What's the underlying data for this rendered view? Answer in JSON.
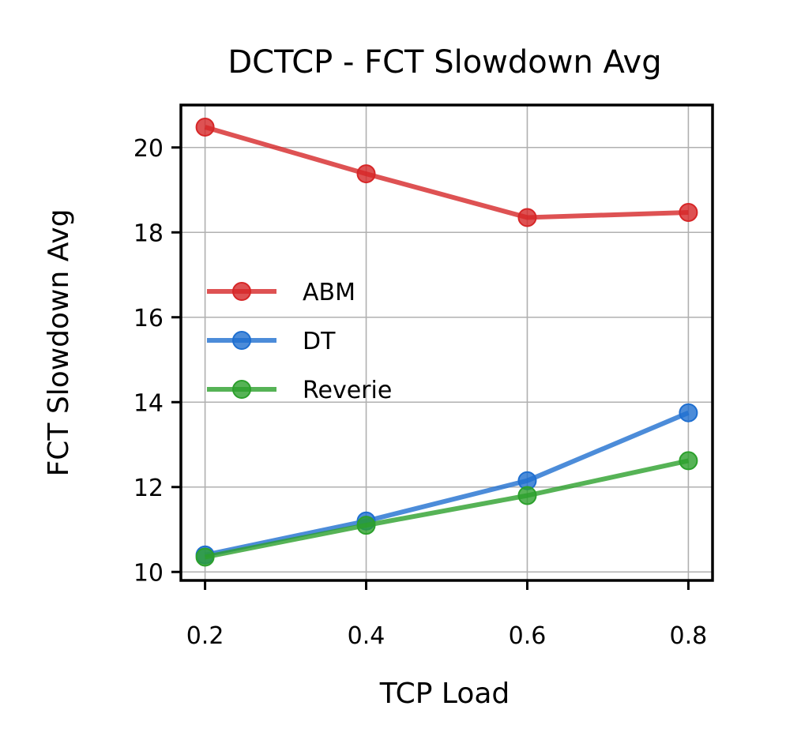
{
  "chart_data": {
    "type": "line",
    "title": "DCTCP - FCT Slowdown Avg",
    "xlabel": "TCP Load",
    "ylabel": "FCT Slowdown Avg",
    "x": [
      0.2,
      0.4,
      0.6,
      0.8
    ],
    "x_tick_labels": [
      "0.2",
      "0.4",
      "0.6",
      "0.8"
    ],
    "y_ticks": [
      10,
      12,
      14,
      16,
      18,
      20
    ],
    "y_tick_labels": [
      "10",
      "12",
      "14",
      "16",
      "18",
      "20"
    ],
    "xlim": [
      0.17,
      0.83
    ],
    "ylim": [
      9.8,
      21.0
    ],
    "grid": true,
    "legend_position": "center-left",
    "series": [
      {
        "name": "ABM",
        "color": "#d62728",
        "values": [
          20.48,
          19.38,
          18.35,
          18.47
        ]
      },
      {
        "name": "DT",
        "color": "#1f6fd0",
        "values": [
          10.4,
          11.2,
          12.15,
          13.75
        ]
      },
      {
        "name": "Reverie",
        "color": "#2ca02c",
        "values": [
          10.35,
          11.1,
          11.8,
          12.62
        ]
      }
    ]
  }
}
